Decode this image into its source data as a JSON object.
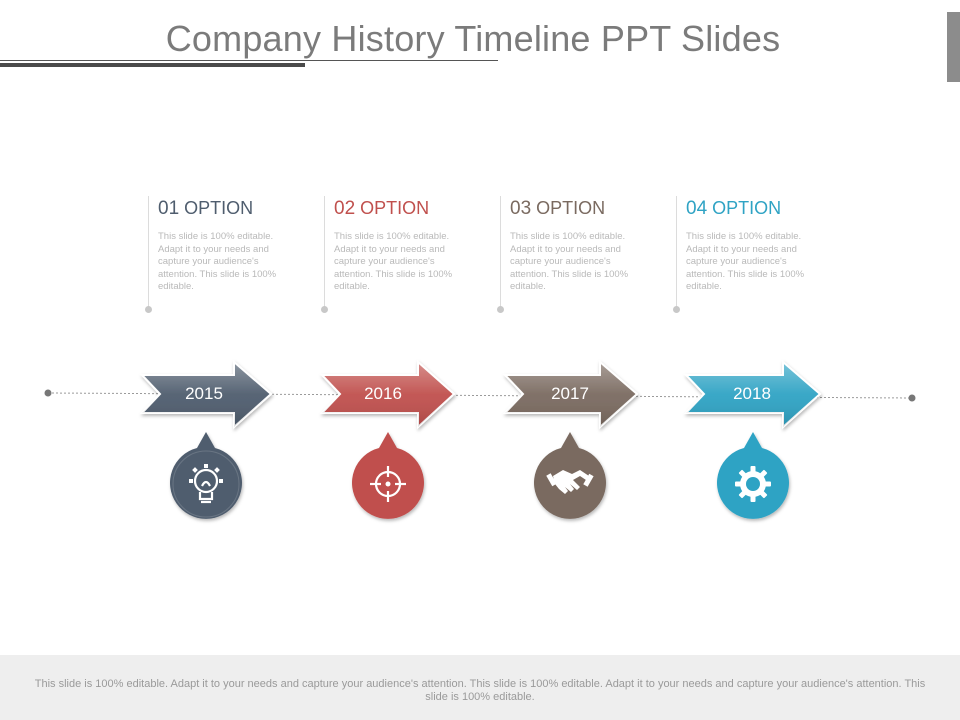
{
  "title": "Company History Timeline PPT Slides",
  "colors": {
    "navy": "#4f5d6e",
    "red": "#c0504d",
    "taupe": "#7a6a60",
    "cyan": "#2fa3c4"
  },
  "options": [
    {
      "number": "01",
      "label": "OPTION",
      "text": "This slide is 100% editable. Adapt it to your needs and capture your audience's attention. This slide is 100% editable.",
      "year": "2015",
      "icon": "lightbulb-gear-icon",
      "color": "#4f5d6e"
    },
    {
      "number": "02",
      "label": "OPTION",
      "text": "This slide is 100% editable. Adapt it to your needs and capture your audience's attention. This slide is 100% editable.",
      "year": "2016",
      "icon": "target-crosshair-icon",
      "color": "#c0504d"
    },
    {
      "number": "03",
      "label": "OPTION",
      "text": "This slide is 100% editable. Adapt it to your needs and capture your audience's attention. This slide is 100% editable.",
      "year": "2017",
      "icon": "handshake-icon",
      "color": "#7a6a60"
    },
    {
      "number": "04",
      "label": "OPTION",
      "text": "This slide is 100% editable. Adapt it to your needs and capture your audience's attention. This slide is 100% editable.",
      "year": "2018",
      "icon": "gear-icon",
      "color": "#2fa3c4"
    }
  ],
  "footer": {
    "text": "This slide is 100% editable. Adapt it to your needs and capture your audience's attention. This slide is 100% editable. Adapt it to your needs and capture your audience's attention. This slide is 100% editable."
  }
}
